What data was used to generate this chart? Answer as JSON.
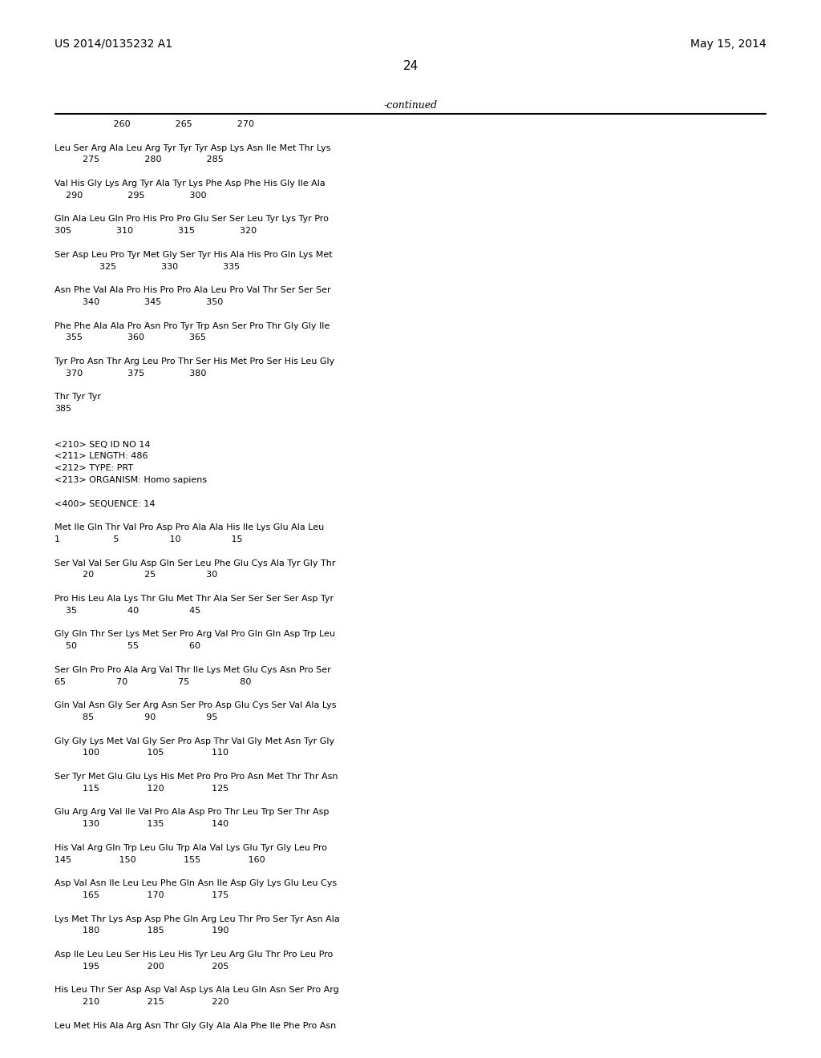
{
  "background_color": "#ffffff",
  "header_left": "US 2014/0135232 A1",
  "header_right": "May 15, 2014",
  "page_number": "24",
  "continued_label": "-continued",
  "content_lines": [
    "                     260                265                270",
    "",
    "Leu Ser Arg Ala Leu Arg Tyr Tyr Tyr Asp Lys Asn Ile Met Thr Lys",
    "          275                280                285",
    "",
    "Val His Gly Lys Arg Tyr Ala Tyr Lys Phe Asp Phe His Gly Ile Ala",
    "    290                295                300",
    "",
    "Gln Ala Leu Gln Pro His Pro Pro Glu Ser Ser Leu Tyr Lys Tyr Pro",
    "305                310                315                320",
    "",
    "Ser Asp Leu Pro Tyr Met Gly Ser Tyr His Ala His Pro Gln Lys Met",
    "                325                330                335",
    "",
    "Asn Phe Val Ala Pro His Pro Pro Ala Leu Pro Val Thr Ser Ser Ser",
    "          340                345                350",
    "",
    "Phe Phe Ala Ala Pro Asn Pro Tyr Trp Asn Ser Pro Thr Gly Gly Ile",
    "    355                360                365",
    "",
    "Tyr Pro Asn Thr Arg Leu Pro Thr Ser His Met Pro Ser His Leu Gly",
    "    370                375                380",
    "",
    "Thr Tyr Tyr",
    "385",
    "",
    "",
    "<210> SEQ ID NO 14",
    "<211> LENGTH: 486",
    "<212> TYPE: PRT",
    "<213> ORGANISM: Homo sapiens",
    "",
    "<400> SEQUENCE: 14",
    "",
    "Met Ile Gln Thr Val Pro Asp Pro Ala Ala His Ile Lys Glu Ala Leu",
    "1                   5                  10                  15",
    "",
    "Ser Val Val Ser Glu Asp Gln Ser Leu Phe Glu Cys Ala Tyr Gly Thr",
    "          20                  25                  30",
    "",
    "Pro His Leu Ala Lys Thr Glu Met Thr Ala Ser Ser Ser Ser Asp Tyr",
    "    35                  40                  45",
    "",
    "Gly Gln Thr Ser Lys Met Ser Pro Arg Val Pro Gln Gln Asp Trp Leu",
    "    50                  55                  60",
    "",
    "Ser Gln Pro Pro Ala Arg Val Thr Ile Lys Met Glu Cys Asn Pro Ser",
    "65                  70                  75                  80",
    "",
    "Gln Val Asn Gly Ser Arg Asn Ser Pro Asp Glu Cys Ser Val Ala Lys",
    "          85                  90                  95",
    "",
    "Gly Gly Lys Met Val Gly Ser Pro Asp Thr Val Gly Met Asn Tyr Gly",
    "          100                 105                 110",
    "",
    "Ser Tyr Met Glu Glu Lys His Met Pro Pro Pro Asn Met Thr Thr Asn",
    "          115                 120                 125",
    "",
    "Glu Arg Arg Val Ile Val Pro Ala Asp Pro Thr Leu Trp Ser Thr Asp",
    "          130                 135                 140",
    "",
    "His Val Arg Gln Trp Leu Glu Trp Ala Val Lys Glu Tyr Gly Leu Pro",
    "145                 150                 155                 160",
    "",
    "Asp Val Asn Ile Leu Leu Phe Gln Asn Ile Asp Gly Lys Glu Leu Cys",
    "          165                 170                 175",
    "",
    "Lys Met Thr Lys Asp Asp Phe Gln Arg Leu Thr Pro Ser Tyr Asn Ala",
    "          180                 185                 190",
    "",
    "Asp Ile Leu Leu Ser His Leu His Tyr Leu Arg Glu Thr Pro Leu Pro",
    "          195                 200                 205",
    "",
    "His Leu Thr Ser Asp Asp Val Asp Lys Ala Leu Gln Asn Ser Pro Arg",
    "          210                 215                 220",
    "",
    "Leu Met His Ala Arg Asn Thr Gly Gly Ala Ala Phe Ile Phe Pro Asn"
  ]
}
